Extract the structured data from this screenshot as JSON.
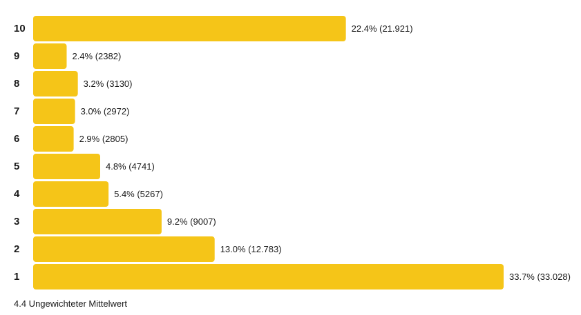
{
  "chart_data": {
    "type": "bar",
    "orientation": "horizontal",
    "categories": [
      "10",
      "9",
      "8",
      "7",
      "6",
      "5",
      "4",
      "3",
      "2",
      "1"
    ],
    "values": [
      22.4,
      2.4,
      3.2,
      3.0,
      2.9,
      4.8,
      5.4,
      9.2,
      13.0,
      33.7
    ],
    "data_labels": [
      "22.4% (21.921)",
      "2.4% (2382)",
      "3.2% (3130)",
      "3.0% (2972)",
      "2.9% (2805)",
      "4.8% (4741)",
      "5.4% (5267)",
      "9.2% (9007)",
      "13.0% (12.783)",
      "33.7% (33.028)"
    ],
    "counts": [
      21921,
      2382,
      3130,
      2972,
      2805,
      4741,
      5267,
      9007,
      12783,
      33028
    ],
    "unit": "%",
    "title": "",
    "xlabel": "",
    "ylabel": "",
    "xlim": [
      0,
      33.7
    ],
    "grid": false,
    "legend": "none",
    "bar_color": "#f5c518"
  },
  "footer": {
    "mean_text": "4.4 Ungewichteter Mittelwert"
  }
}
